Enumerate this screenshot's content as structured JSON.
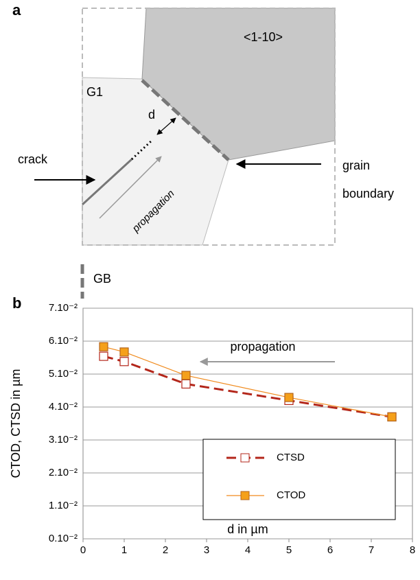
{
  "diagram": {
    "panel_label": "a",
    "grain_orientation": "<1-10>",
    "grain_name": "G1",
    "distance_label": "d",
    "crack_label": "crack",
    "boundary_label_1": "grain",
    "boundary_label_2": "boundary",
    "propagation_label": "propagation",
    "legend_label": "GB"
  },
  "chart_data": {
    "type": "line",
    "panel_label": "b",
    "x_label": "d in µm",
    "y_label": "CTOD, CTSD in µm",
    "annotation": "propagation",
    "x": [
      0.5,
      1,
      2.5,
      5,
      7.5
    ],
    "series": [
      {
        "name": "CTSD",
        "color": "#b3261a",
        "values": [
          0.0554,
          0.0538,
          0.047,
          0.042,
          0.037
        ]
      },
      {
        "name": "CTOD",
        "color": "#f08a1c",
        "values": [
          0.0583,
          0.0567,
          0.0496,
          0.0429,
          0.037
        ]
      }
    ],
    "xlim": [
      0,
      8
    ],
    "xticks": [
      0,
      1,
      2,
      3,
      4,
      5,
      6,
      7,
      8
    ],
    "ylim": [
      0,
      0.07
    ],
    "yticks": [
      {
        "value": 0,
        "label": "0.10⁻²"
      },
      {
        "value": 0.01,
        "label": "1.10⁻²"
      },
      {
        "value": 0.02,
        "label": "2.10⁻²"
      },
      {
        "value": 0.03,
        "label": "3.10⁻²"
      },
      {
        "value": 0.04,
        "label": "4.10⁻²"
      },
      {
        "value": 0.05,
        "label": "5.10⁻²"
      },
      {
        "value": 0.06,
        "label": "6.10⁻²"
      },
      {
        "value": 0.07,
        "label": "7.10⁻²"
      }
    ],
    "grid": true
  }
}
